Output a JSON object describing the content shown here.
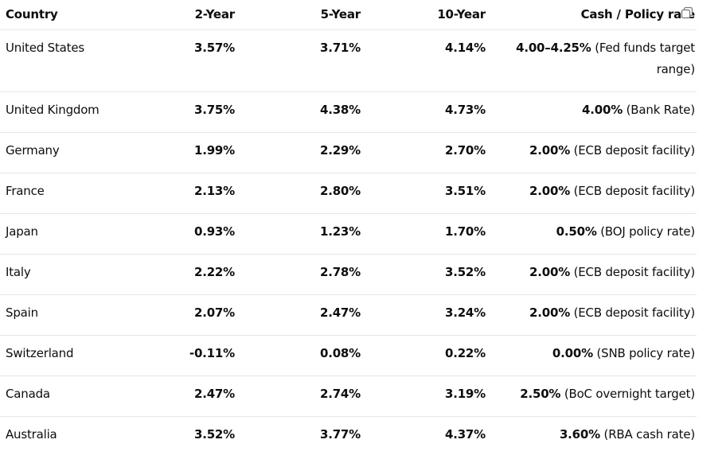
{
  "table": {
    "headers": [
      "Country",
      "2-Year",
      "5-Year",
      "10-Year",
      "Cash / Policy rate"
    ],
    "rows": [
      {
        "country": "United States",
        "y2": "3.57%",
        "y5": "3.71%",
        "y10": "4.14%",
        "policy_rate": "4.00–4.25%",
        "policy_note": " (Fed funds target range)"
      },
      {
        "country": "United Kingdom",
        "y2": "3.75%",
        "y5": "4.38%",
        "y10": "4.73%",
        "policy_rate": "4.00%",
        "policy_note": " (Bank Rate)"
      },
      {
        "country": "Germany",
        "y2": "1.99%",
        "y5": "2.29%",
        "y10": "2.70%",
        "policy_rate": "2.00%",
        "policy_note": " (ECB deposit facility)"
      },
      {
        "country": "France",
        "y2": "2.13%",
        "y5": "2.80%",
        "y10": "3.51%",
        "policy_rate": "2.00%",
        "policy_note": " (ECB deposit facility)"
      },
      {
        "country": "Japan",
        "y2": "0.93%",
        "y5": "1.23%",
        "y10": "1.70%",
        "policy_rate": "0.50%",
        "policy_note": " (BOJ policy rate)"
      },
      {
        "country": "Italy",
        "y2": "2.22%",
        "y5": "2.78%",
        "y10": "3.52%",
        "policy_rate": "2.00%",
        "policy_note": " (ECB deposit facility)"
      },
      {
        "country": "Spain",
        "y2": "2.07%",
        "y5": "2.47%",
        "y10": "3.24%",
        "policy_rate": "2.00%",
        "policy_note": " (ECB deposit facility)"
      },
      {
        "country": "Switzerland",
        "y2": "-0.11%",
        "y5": "0.08%",
        "y10": "0.22%",
        "policy_rate": "0.00%",
        "policy_note": " (SNB policy rate)"
      },
      {
        "country": "Canada",
        "y2": "2.47%",
        "y5": "2.74%",
        "y10": "3.19%",
        "policy_rate": "2.50%",
        "policy_note": " (BoC overnight target)"
      },
      {
        "country": "Australia",
        "y2": "3.52%",
        "y5": "3.77%",
        "y10": "4.37%",
        "policy_rate": "3.60%",
        "policy_note": " (RBA cash rate)"
      }
    ]
  },
  "icons": {
    "copy": "copy-icon"
  }
}
